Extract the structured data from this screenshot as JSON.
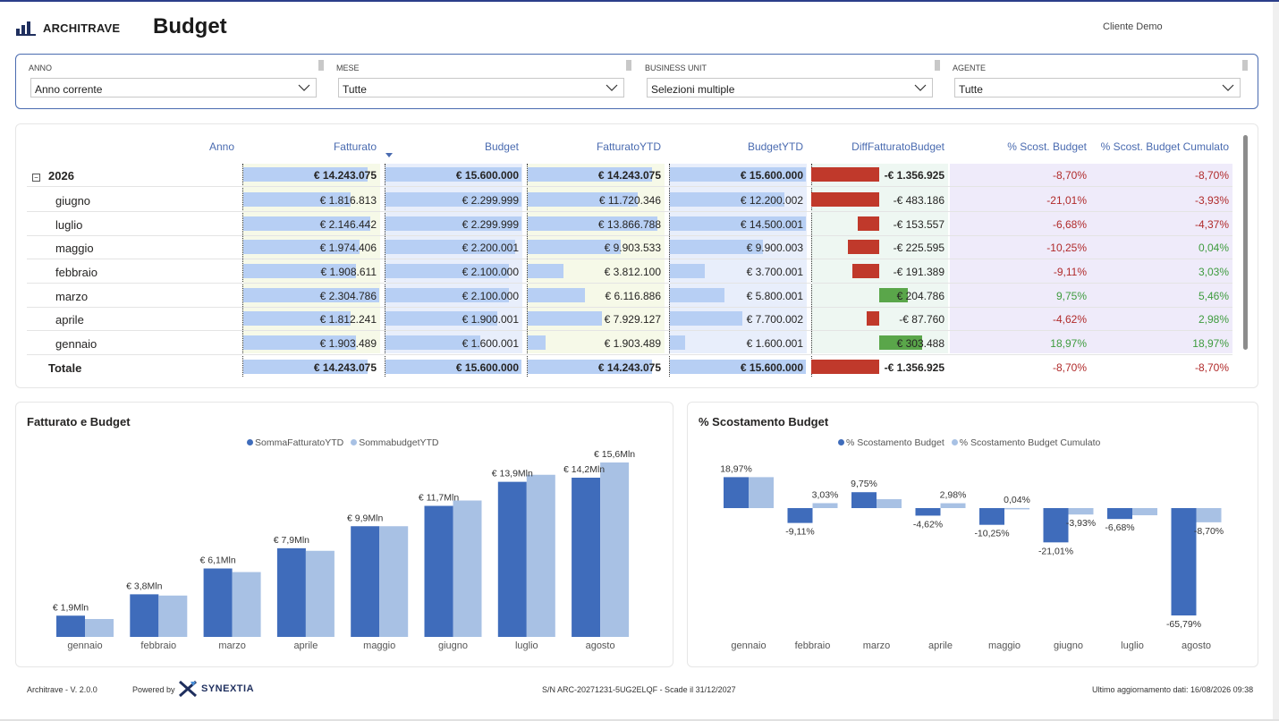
{
  "header": {
    "brand": "ARCHITRAVE",
    "title": "Budget",
    "client": "Cliente Demo"
  },
  "filters": [
    {
      "label": "ANNO",
      "value": "Anno corrente"
    },
    {
      "label": "MESE",
      "value": "Tutte"
    },
    {
      "label": "BUSINESS UNIT",
      "value": "Selezioni multiple"
    },
    {
      "label": "AGENTE",
      "value": "Tutte"
    }
  ],
  "matrix": {
    "headers": [
      "Anno",
      "Fatturato",
      "Budget",
      "FatturatoYTD",
      "BudgetYTD",
      "DiffFatturatoBudget",
      "% Scost. Budget",
      "% Scost. Budget Cumulato"
    ],
    "expand_symbol": "−",
    "rows": [
      {
        "label": "2026",
        "bold": true,
        "fatturato": "€ 14.243.075",
        "budget": "€ 15.600.000",
        "fytd": "€ 14.243.075",
        "bytd": "€ 15.600.000",
        "diff": "-€ 1.356.925",
        "scost": "-8,70%",
        "scostcum": "-8,70%",
        "f": 14243075,
        "b": 15600000,
        "fy": 14243075,
        "by": 15600000,
        "d": -1356925,
        "s": -8.7,
        "sc": -8.7
      },
      {
        "label": "giugno",
        "bold": false,
        "fatturato": "€ 1.816.813",
        "budget": "€ 2.299.999",
        "fytd": "€ 11.720.346",
        "bytd": "€ 12.200.002",
        "diff": "-€ 483.186",
        "scost": "-21,01%",
        "scostcum": "-3,93%",
        "f": 1816813,
        "b": 2299999,
        "fy": 11720346,
        "by": 12200002,
        "d": -483186,
        "s": -21.01,
        "sc": -3.93
      },
      {
        "label": "luglio",
        "bold": false,
        "fatturato": "€ 2.146.442",
        "budget": "€ 2.299.999",
        "fytd": "€ 13.866.788",
        "bytd": "€ 14.500.001",
        "diff": "-€ 153.557",
        "scost": "-6,68%",
        "scostcum": "-4,37%",
        "f": 2146442,
        "b": 2299999,
        "fy": 13866788,
        "by": 14500001,
        "d": -153557,
        "s": -6.68,
        "sc": -4.37
      },
      {
        "label": "maggio",
        "bold": false,
        "fatturato": "€ 1.974.406",
        "budget": "€ 2.200.001",
        "fytd": "€ 9.903.533",
        "bytd": "€ 9.900.003",
        "diff": "-€ 225.595",
        "scost": "-10,25%",
        "scostcum": "0,04%",
        "f": 1974406,
        "b": 2200001,
        "fy": 9903533,
        "by": 9900003,
        "d": -225595,
        "s": -10.25,
        "sc": 0.04
      },
      {
        "label": "febbraio",
        "bold": false,
        "fatturato": "€ 1.908.611",
        "budget": "€ 2.100.000",
        "fytd": "€ 3.812.100",
        "bytd": "€ 3.700.001",
        "diff": "-€ 191.389",
        "scost": "-9,11%",
        "scostcum": "3,03%",
        "f": 1908611,
        "b": 2100000,
        "fy": 3812100,
        "by": 3700001,
        "d": -191389,
        "s": -9.11,
        "sc": 3.03
      },
      {
        "label": "marzo",
        "bold": false,
        "fatturato": "€ 2.304.786",
        "budget": "€ 2.100.000",
        "fytd": "€ 6.116.886",
        "bytd": "€ 5.800.001",
        "diff": "€ 204.786",
        "scost": "9,75%",
        "scostcum": "5,46%",
        "f": 2304786,
        "b": 2100000,
        "fy": 6116886,
        "by": 5800001,
        "d": 204786,
        "s": 9.75,
        "sc": 5.46
      },
      {
        "label": "aprile",
        "bold": false,
        "fatturato": "€ 1.812.241",
        "budget": "€ 1.900.001",
        "fytd": "€ 7.929.127",
        "bytd": "€ 7.700.002",
        "diff": "-€ 87.760",
        "scost": "-4,62%",
        "scostcum": "2,98%",
        "f": 1812241,
        "b": 1900001,
        "fy": 7929127,
        "by": 7700002,
        "d": -87760,
        "s": -4.62,
        "sc": 2.98
      },
      {
        "label": "gennaio",
        "bold": false,
        "fatturato": "€ 1.903.489",
        "budget": "€ 1.600.001",
        "fytd": "€ 1.903.489",
        "bytd": "€ 1.600.001",
        "diff": "€ 303.488",
        "scost": "18,97%",
        "scostcum": "18,97%",
        "f": 1903489,
        "b": 1600001,
        "fy": 1903489,
        "by": 1600001,
        "d": 303488,
        "s": 18.97,
        "sc": 18.97
      },
      {
        "label": "Totale",
        "bold": true,
        "fatturato": "€ 14.243.075",
        "budget": "€ 15.600.000",
        "fytd": "€ 14.243.075",
        "bytd": "€ 15.600.000",
        "diff": "-€ 1.356.925",
        "scost": "-8,70%",
        "scostcum": "-8,70%",
        "f": 14243075,
        "b": 15600000,
        "fy": 14243075,
        "by": 15600000,
        "d": -1356925,
        "s": -8.7,
        "sc": -8.7
      }
    ],
    "colors": {
      "bar": "#b7cff4",
      "neg": "#c0392b",
      "pos": "#5aa64a",
      "negText": "#b02a2a",
      "posText": "#3e9b3e",
      "bgPurple": "#efebfa",
      "bgGreen": "#eef7f2",
      "bgYellow": "#f6f9e8",
      "bgBlue": "#e8eefb"
    }
  },
  "chart1": {
    "title": "Fatturato e Budget",
    "legend": [
      {
        "name": "SommaFatturatoYTD",
        "color": "#3f6cbb"
      },
      {
        "name": "SommabudgetYTD",
        "color": "#a8c1e4"
      }
    ],
    "chart_data": {
      "type": "bar",
      "title": "Fatturato e Budget",
      "categories": [
        "gennaio",
        "febbraio",
        "marzo",
        "aprile",
        "maggio",
        "giugno",
        "luglio",
        "agosto"
      ],
      "series": [
        {
          "name": "SommaFatturatoYTD",
          "values": [
            1.9,
            3.81,
            6.12,
            7.93,
            9.9,
            11.72,
            13.87,
            14.24
          ]
        },
        {
          "name": "SommabudgetYTD",
          "values": [
            1.6,
            3.7,
            5.8,
            7.7,
            9.9,
            12.2,
            14.5,
            15.6
          ]
        }
      ],
      "labels": [
        "€ 1,9Mln",
        "€ 3,8Mln",
        "€ 6,1Mln",
        "€ 7,9Mln",
        "€ 9,9Mln",
        "€ 11,7Mln",
        "€ 13,9Mln",
        "€ 14,2Mln"
      ],
      "extra_label": "€ 15,6Mln",
      "ylim": [
        0,
        16
      ]
    }
  },
  "chart2": {
    "title": "% Scostamento Budget",
    "legend": [
      {
        "name": "% Scostamento Budget",
        "color": "#3f6cbb"
      },
      {
        "name": "% Scostamento Budget Cumulato",
        "color": "#a8c1e4"
      }
    ],
    "chart_data": {
      "type": "bar",
      "title": "% Scostamento Budget",
      "categories": [
        "gennaio",
        "febbraio",
        "marzo",
        "aprile",
        "maggio",
        "giugno",
        "luglio",
        "agosto"
      ],
      "series": [
        {
          "name": "% Scostamento Budget",
          "values": [
            18.97,
            -9.11,
            9.75,
            -4.62,
            -10.25,
            -21.01,
            -6.68,
            -65.79
          ]
        },
        {
          "name": "% Scostamento Budget Cumulato",
          "values": [
            18.97,
            3.03,
            5.46,
            2.98,
            0.04,
            -3.93,
            -4.37,
            -8.7
          ]
        }
      ],
      "labels1": [
        "18,97%",
        "-9,11%",
        "9,75%",
        "-4,62%",
        "-10,25%",
        "-21,01%",
        "-6,68%",
        "-65,79%"
      ],
      "labels2": [
        "",
        "3,03%",
        "",
        "2,98%",
        "0,04%",
        "-3,93%",
        "",
        "-8,70%"
      ],
      "ylim": [
        -70,
        22
      ]
    }
  },
  "footer": {
    "version": "Architrave  -  V. 2.0.0",
    "powered": "Powered by",
    "brand": "SYNEXTIA",
    "serial": "S/N ARC-20271231-5UG2ELQF  -  Scade il 31/12/2027",
    "updated": "Ultimo aggiornamento dati:  16/08/2026 09:38"
  }
}
